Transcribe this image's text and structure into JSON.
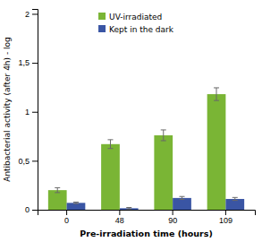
{
  "chart_data": {
    "type": "bar",
    "xlabel": "Pre-irradiation time (hours)",
    "ylabel": "Antibacterial activity (after 4h) - log",
    "categories": [
      "0",
      "48",
      "90",
      "109"
    ],
    "series": [
      {
        "name": "UV-irradiated",
        "color": "#7ab535",
        "values": [
          0.2,
          0.67,
          0.76,
          1.18
        ],
        "errors": [
          0.025,
          0.045,
          0.055,
          0.065
        ]
      },
      {
        "name": "Kept in the dark",
        "color": "#3a55a4",
        "values": [
          0.07,
          0.015,
          0.12,
          0.11
        ],
        "errors": [
          0.008,
          0.008,
          0.015,
          0.015
        ]
      }
    ],
    "ylim": [
      0,
      2.05
    ],
    "yticks": [
      0,
      {
        "value": 0.5,
        "label": "0,5"
      },
      1,
      {
        "value": 1.5,
        "label": "1,5"
      },
      2
    ],
    "legend": "top-left",
    "grid": false
  }
}
